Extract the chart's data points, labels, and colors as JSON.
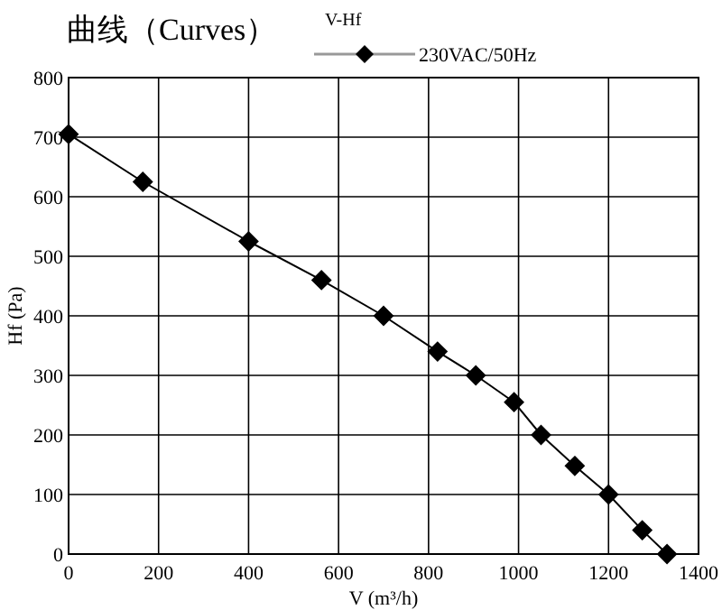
{
  "chart_data": {
    "type": "line",
    "title": "曲线（Curves）",
    "legend_title": "V-Hf",
    "xlabel": "V (m³/h)",
    "ylabel": "Hf (Pa)",
    "x": [
      0,
      165,
      400,
      562,
      700,
      820,
      905,
      990,
      1050,
      1125,
      1200,
      1275,
      1330
    ],
    "series": [
      {
        "name": "230VAC/50Hz",
        "color": "#000000",
        "values": [
          705,
          625,
          525,
          460,
          400,
          340,
          300,
          255,
          200,
          148,
          100,
          40,
          0
        ]
      }
    ],
    "xlim": [
      0,
      1400
    ],
    "xticks": [
      0,
      200,
      400,
      600,
      800,
      1000,
      1200,
      1400
    ],
    "ylim": [
      0,
      800
    ],
    "yticks": [
      0,
      100,
      200,
      300,
      400,
      500,
      600,
      700,
      800
    ],
    "grid": true,
    "legend": "top",
    "marker": "diamond",
    "line_style": "solid"
  }
}
